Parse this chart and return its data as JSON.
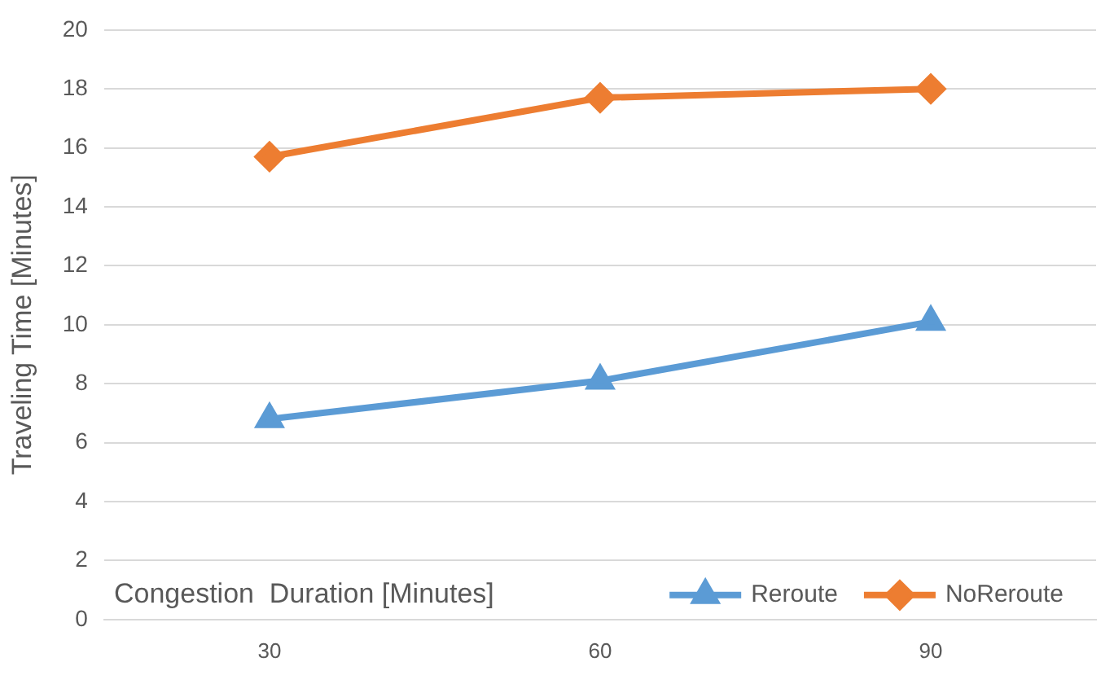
{
  "chart_data": {
    "type": "line",
    "xlabel": "Congestion  Duration [Minutes]",
    "ylabel": "Traveling Time [Minutes]",
    "categories": [
      "30",
      "60",
      "90"
    ],
    "series": [
      {
        "name": "Reroute",
        "color": "#5b9bd5",
        "marker": "triangle",
        "values": [
          6.8,
          8.1,
          10.1
        ]
      },
      {
        "name": "NoReroute",
        "color": "#ed7d31",
        "marker": "diamond",
        "values": [
          15.7,
          17.7,
          18.0
        ]
      }
    ],
    "ylim": [
      0,
      20
    ],
    "yticks": [
      0,
      2,
      4,
      6,
      8,
      10,
      12,
      14,
      16,
      18,
      20
    ],
    "grid": "y",
    "legend": "bottom right"
  }
}
